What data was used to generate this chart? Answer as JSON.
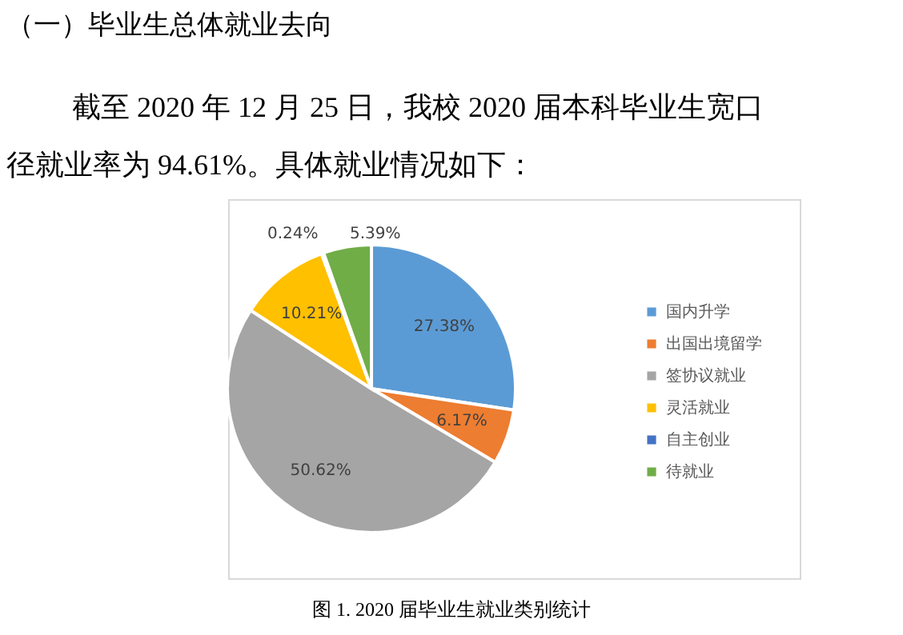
{
  "chart_data": {
    "type": "pie",
    "title": "（一）毕业生总体就业去向",
    "subtitle": "截至 2020 年 12 月 25 日，我校 2020 届本科毕业生宽口径就业率为 94.61%。具体就业情况如下：",
    "annotations": [
      "图 1. 2020 届毕业生就业类别统计"
    ],
    "categories": [
      "国内升学",
      "出国出境留学",
      "签协议就业",
      "灵活就业",
      "自主创业",
      "待就业"
    ],
    "values": [
      27.38,
      6.17,
      50.62,
      10.21,
      0.24,
      5.39
    ],
    "value_labels": [
      "27.38%",
      "6.17%",
      "50.62%",
      "10.21%",
      "0.24%",
      "5.39%"
    ],
    "colors": [
      "#5b9bd5",
      "#ed7d31",
      "#a5a5a5",
      "#ffc000",
      "#4472c4",
      "#70ad47"
    ],
    "legend": "right"
  }
}
